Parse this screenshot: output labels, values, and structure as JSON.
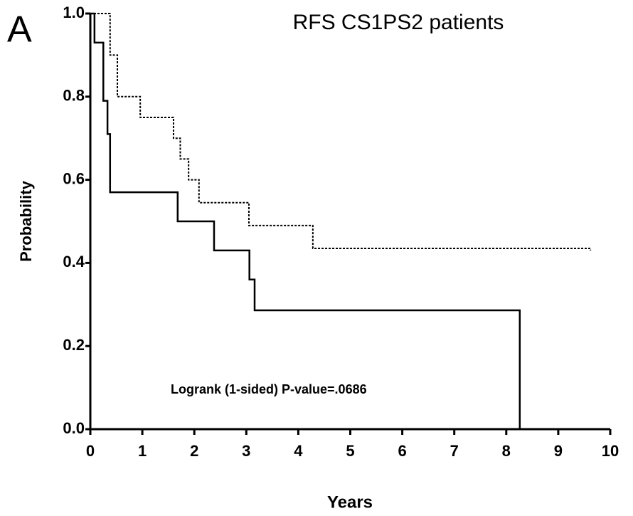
{
  "chart_data": {
    "type": "step",
    "title": "RFS CS1PS2 patients",
    "panel_label": "A",
    "x_label": "Years",
    "y_label": "Probability",
    "annotation": "Logrank (1-sided) P-value=.0686",
    "xlim": [
      0,
      10
    ],
    "ylim": [
      0,
      1
    ],
    "xticks": [
      0,
      1,
      2,
      3,
      4,
      5,
      6,
      7,
      8,
      9,
      10
    ],
    "yticks": [
      {
        "value": 0,
        "label": "0.0"
      },
      {
        "value": 0.2,
        "label": "0.2"
      },
      {
        "value": 0.4,
        "label": "0.4"
      },
      {
        "value": 0.6,
        "label": "0.6"
      },
      {
        "value": 0.8,
        "label": "0.8"
      },
      {
        "value": 1,
        "label": "1.0"
      }
    ],
    "series": [
      {
        "color": "#000000",
        "dash": false,
        "x": [
          0,
          0.08,
          0.25,
          0.33,
          0.38,
          1.68,
          2.38,
          3.06,
          3.16,
          8.26,
          8.26
        ],
        "values": [
          1,
          0.93,
          0.79,
          0.71,
          0.57,
          0.5,
          0.43,
          0.36,
          0.286,
          0.28,
          0
        ]
      },
      {
        "color": "#000000",
        "dash": true,
        "x": [
          0,
          0.38,
          0.52,
          0.96,
          1.6,
          1.73,
          1.89,
          2.09,
          3.05,
          4.28,
          9.62
        ],
        "values": [
          1,
          0.9,
          0.8,
          0.75,
          0.7,
          0.65,
          0.6,
          0.545,
          0.49,
          0.435,
          0.43
        ]
      }
    ]
  }
}
